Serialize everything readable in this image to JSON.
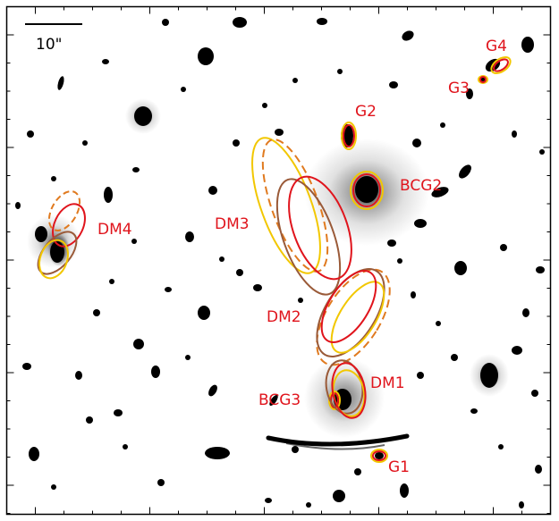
{
  "image": {
    "description_colors": {
      "background": "#ffffff",
      "sources": "#000000",
      "label": "#e0141c",
      "red": "#e0141c",
      "orange": "#e07a1f",
      "yellow": "#f2c700",
      "brown": "#9a5a38"
    }
  },
  "scale_bar": {
    "label": "10\""
  },
  "labels": {
    "g1": "G1",
    "g2": "G2",
    "g3": "G3",
    "g4": "G4",
    "bcg2": "BCG2",
    "bcg3": "BCG3",
    "dm1": "DM1",
    "dm2": "DM2",
    "dm3": "DM3",
    "dm4": "DM4"
  }
}
